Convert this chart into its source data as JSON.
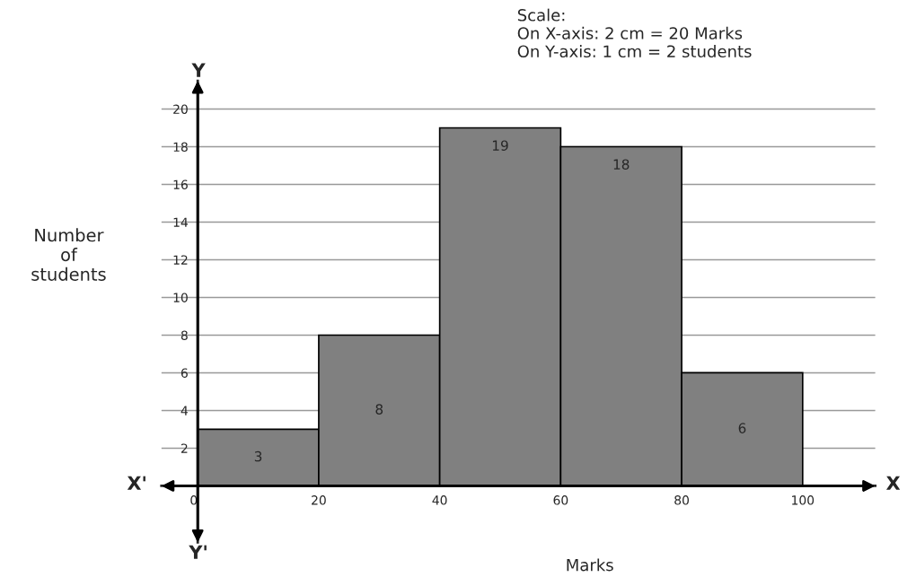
{
  "chart_data": {
    "type": "histogram",
    "xlabel": "Marks",
    "ylabel": "Number\nof\nstudents",
    "bins": [
      0,
      20,
      40,
      60,
      80,
      100
    ],
    "values": [
      3,
      8,
      19,
      18,
      6
    ],
    "color": "#808080",
    "data_labels": true,
    "xlim": [
      -6,
      112
    ],
    "ylim": [
      -3,
      21.5
    ],
    "xticks": [
      0,
      20,
      40,
      60,
      80,
      100
    ],
    "yticks": [
      2,
      4,
      6,
      8,
      10,
      12,
      14,
      16,
      18,
      20
    ],
    "grid": "y",
    "annotations": [
      "Scale:\nOn X-axis: 2 cm = 20 Marks\nOn Y-axis: 1 cm = 2 students",
      "X'",
      "X",
      "Y",
      "Y'"
    ]
  }
}
